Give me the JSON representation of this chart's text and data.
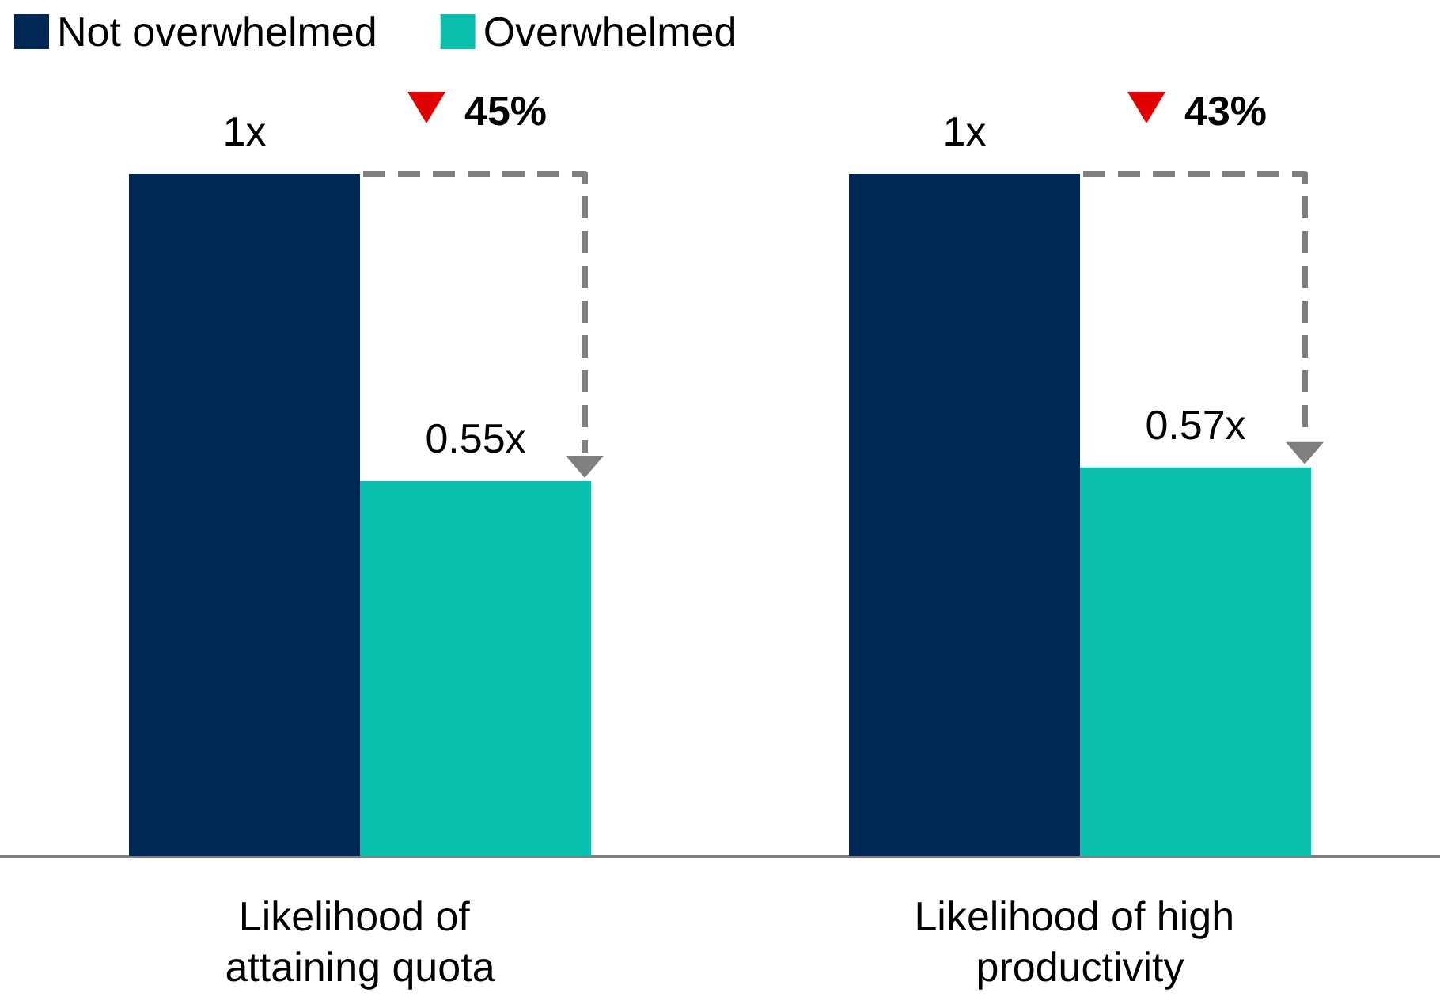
{
  "chart_data": {
    "type": "bar",
    "categories": [
      "Likelihood of attaining quota",
      "Likelihood of high productivity"
    ],
    "series": [
      {
        "name": "Not overwhelmed",
        "color": "#002855",
        "values": [
          1,
          1
        ],
        "value_labels": [
          "1x",
          "1x"
        ]
      },
      {
        "name": "Overwhelmed",
        "color": "#0bbfae",
        "values": [
          0.55,
          0.57
        ],
        "value_labels": [
          "0.55x",
          "0.57x"
        ]
      }
    ],
    "annotations": [
      "45%",
      "43%"
    ],
    "legend": "top left"
  }
}
